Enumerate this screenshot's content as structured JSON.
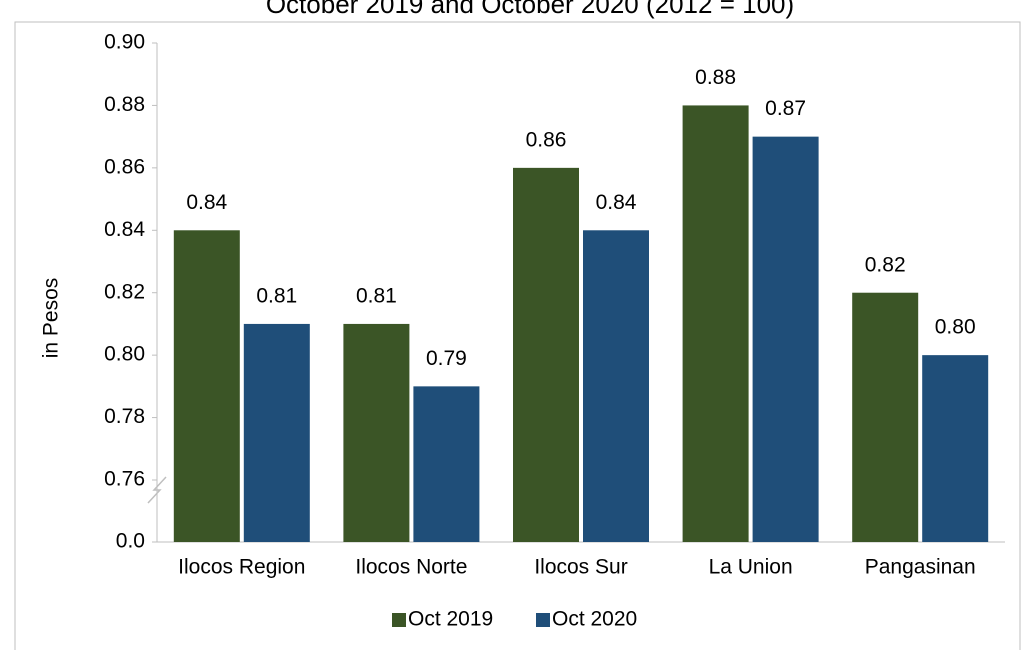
{
  "chart_data": {
    "type": "bar",
    "title": "October 2019 and October 2020 (2012 = 100)",
    "y_label": "in Pesos",
    "categories": [
      "Ilocos Region",
      "Ilocos Norte",
      "Ilocos Sur",
      "La Union",
      "Pangasinan"
    ],
    "series": [
      {
        "name": "Oct 2019",
        "color": "#3b5526",
        "values": [
          0.84,
          0.81,
          0.86,
          0.88,
          0.82
        ],
        "value_labels": [
          "0.84",
          "0.81",
          "0.86",
          "0.88",
          "0.82"
        ]
      },
      {
        "name": "Oct 2020",
        "color": "#1f4e79",
        "values": [
          0.81,
          0.79,
          0.84,
          0.87,
          0.8
        ],
        "value_labels": [
          "0.81",
          "0.79",
          "0.84",
          "0.87",
          "0.80"
        ]
      }
    ],
    "ylim": [
      0,
      0.9
    ],
    "ybreak": [
      0,
      0.76
    ],
    "yticks": [
      {
        "value": 0,
        "label": "0.0"
      },
      0.76,
      0.78,
      {
        "value": 0.8,
        "label": "0.80"
      },
      0.82,
      0.84,
      0.86,
      0.88,
      {
        "value": 0.9,
        "label": "0.90"
      }
    ],
    "legend": "bottom"
  }
}
